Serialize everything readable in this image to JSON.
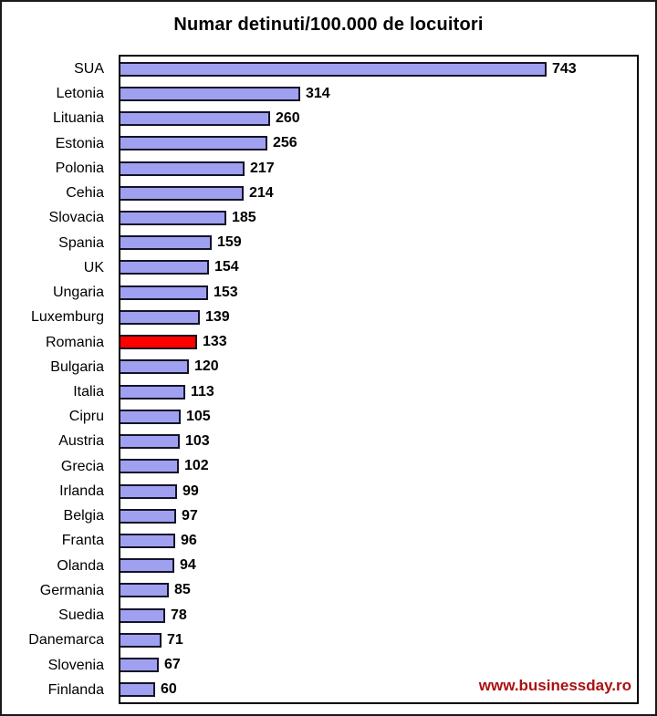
{
  "title": "Numar detinuti/100.000 de locuitori",
  "watermark": "www.businessday.ro",
  "colors": {
    "bar_fill": "#a0a0f0",
    "bar_border": "#141428",
    "highlight_fill": "#ff0000",
    "watermark_text": "#aa1111",
    "plot_border": "#000000",
    "frame_border": "#1a1a1a",
    "background": "#ffffff",
    "text": "#000000"
  },
  "chart_data": {
    "type": "bar",
    "orientation": "horizontal",
    "title": "Numar detinuti/100.000 de locuitori",
    "categories": [
      "SUA",
      "Letonia",
      "Lituania",
      "Estonia",
      "Polonia",
      "Cehia",
      "Slovacia",
      "Spania",
      "UK",
      "Ungaria",
      "Luxemburg",
      "Romania",
      "Bulgaria",
      "Italia",
      "Cipru",
      "Austria",
      "Grecia",
      "Irlanda",
      "Belgia",
      "Franta",
      "Olanda",
      "Germania",
      "Suedia",
      "Danemarca",
      "Slovenia",
      "Finlanda"
    ],
    "values": [
      743,
      314,
      260,
      256,
      217,
      214,
      185,
      159,
      154,
      153,
      139,
      133,
      120,
      113,
      105,
      103,
      102,
      99,
      97,
      96,
      94,
      85,
      78,
      71,
      67,
      60
    ],
    "highlight_category": "Romania",
    "xlabel": "",
    "ylabel": "",
    "xlim": [
      0,
      900
    ],
    "grid": false,
    "legend": false,
    "value_labels": true,
    "annotations": [
      "www.businessday.ro"
    ]
  }
}
